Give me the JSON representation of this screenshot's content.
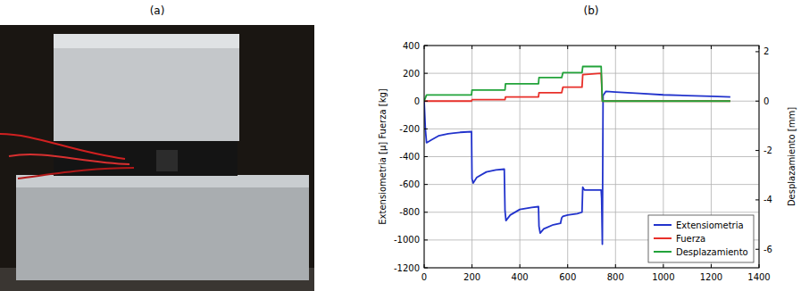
{
  "panel_labels": [
    "(a)",
    "(b)"
  ],
  "chart_data": {
    "type": "line",
    "y_label": "Extensiometria [μ] Fuerza [kg]",
    "y2_label": "Desplazamiento [mm]",
    "xlim": [
      0,
      1400
    ],
    "xticks": [
      0,
      200,
      400,
      600,
      800,
      1000,
      1200,
      1400
    ],
    "ylim": [
      -1200,
      400
    ],
    "yticks": [
      -1200,
      -1000,
      -800,
      -600,
      -400,
      -200,
      0,
      200,
      400
    ],
    "y2lim": [
      -6.75,
      2.25
    ],
    "y2ticks": [
      -6,
      -4,
      -2,
      0,
      2
    ],
    "grid": true,
    "legend": "lower right",
    "series": [
      {
        "name": "Extensiometria",
        "color": "#2233cc",
        "x": [
          0,
          5,
          10,
          30,
          60,
          100,
          150,
          198,
          200,
          205,
          220,
          260,
          300,
          335,
          338,
          342,
          360,
          400,
          450,
          478,
          480,
          485,
          500,
          540,
          570,
          575,
          580,
          600,
          640,
          660,
          663,
          670,
          700,
          740,
          742,
          745,
          748,
          760,
          800,
          900,
          1000,
          1100,
          1200,
          1280
        ],
        "values": [
          0,
          -200,
          -300,
          -280,
          -250,
          -235,
          -225,
          -220,
          -560,
          -590,
          -550,
          -510,
          -495,
          -490,
          -790,
          -860,
          -820,
          -780,
          -765,
          -760,
          -900,
          -950,
          -920,
          -890,
          -880,
          -840,
          -830,
          -820,
          -810,
          -800,
          -620,
          -640,
          -640,
          -640,
          -700,
          -1030,
          40,
          70,
          65,
          55,
          45,
          40,
          35,
          30
        ]
      },
      {
        "name": "Fuerza",
        "color": "#e8302a",
        "x": [
          0,
          198,
          200,
          338,
          340,
          478,
          480,
          575,
          580,
          660,
          663,
          740,
          745,
          1280
        ],
        "values": [
          0,
          0,
          10,
          10,
          30,
          30,
          60,
          60,
          100,
          100,
          190,
          200,
          0,
          0
        ]
      },
      {
        "name": "Desplazamiento",
        "color": "#22a33a",
        "axis": "y2",
        "x": [
          0,
          10,
          198,
          200,
          338,
          340,
          478,
          480,
          575,
          580,
          660,
          663,
          740,
          745,
          1280
        ],
        "values": [
          0,
          0.25,
          0.25,
          0.45,
          0.45,
          0.7,
          0.7,
          0.95,
          0.95,
          1.15,
          1.15,
          1.4,
          1.4,
          0,
          0
        ]
      }
    ]
  }
}
